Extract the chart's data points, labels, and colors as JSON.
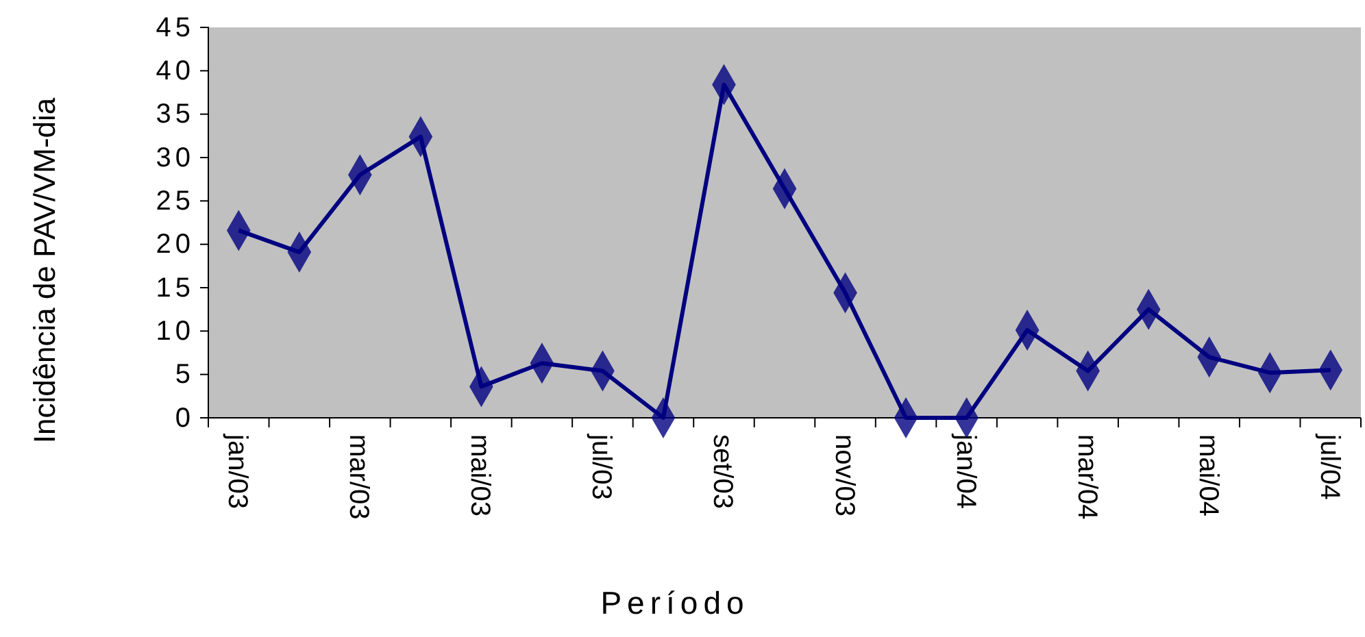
{
  "chart_data": {
    "type": "line",
    "xlabel": "Período",
    "ylabel": "Incidência de PAV/VM-dia",
    "categories": [
      "jan/03",
      null,
      "mar/03",
      null,
      "mai/03",
      null,
      "jul/03",
      null,
      "set/03",
      null,
      "nov/03",
      null,
      "jan/04",
      null,
      "mar/04",
      null,
      "mai/04",
      null,
      "jul/04"
    ],
    "series": [
      {
        "color": "#000080",
        "values": [
          21.6,
          19.1,
          28,
          32.4,
          3.6,
          6.3,
          5.4,
          0,
          38.4,
          26.4,
          14.4,
          0,
          0,
          10.1,
          5.4,
          12.5,
          7,
          5.2,
          5.5
        ]
      }
    ],
    "ylim": [
      0,
      45
    ],
    "yticks": [
      0,
      5,
      10,
      15,
      20,
      25,
      30,
      35,
      40,
      45
    ],
    "grid": false,
    "marker": "diamond",
    "line_style": "solid"
  }
}
